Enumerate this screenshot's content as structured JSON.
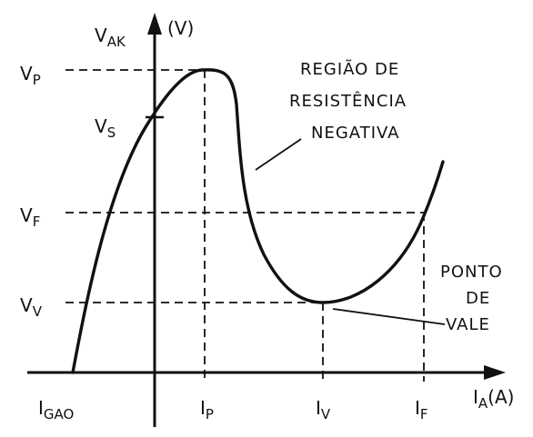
{
  "axes": {
    "y_main": "V",
    "y_sub": "AK",
    "y_unit": "(V)",
    "x_main": "I",
    "x_sub": "A",
    "x_unit": "(A)"
  },
  "y_labels": [
    {
      "main": "V",
      "sub": "P"
    },
    {
      "main": "V",
      "sub": "S"
    },
    {
      "main": "V",
      "sub": "F"
    },
    {
      "main": "V",
      "sub": "V"
    }
  ],
  "x_labels": [
    {
      "main": "I",
      "sub": "GAO"
    },
    {
      "main": "I",
      "sub": "P"
    },
    {
      "main": "I",
      "sub": "V"
    },
    {
      "main": "I",
      "sub": "F"
    }
  ],
  "annotations": {
    "negative_region": [
      "REGIÃO DE",
      "RESISTÊNCIA",
      "NEGATIVA"
    ],
    "valley_point": [
      "PONTO",
      "DE",
      "VALE"
    ]
  }
}
